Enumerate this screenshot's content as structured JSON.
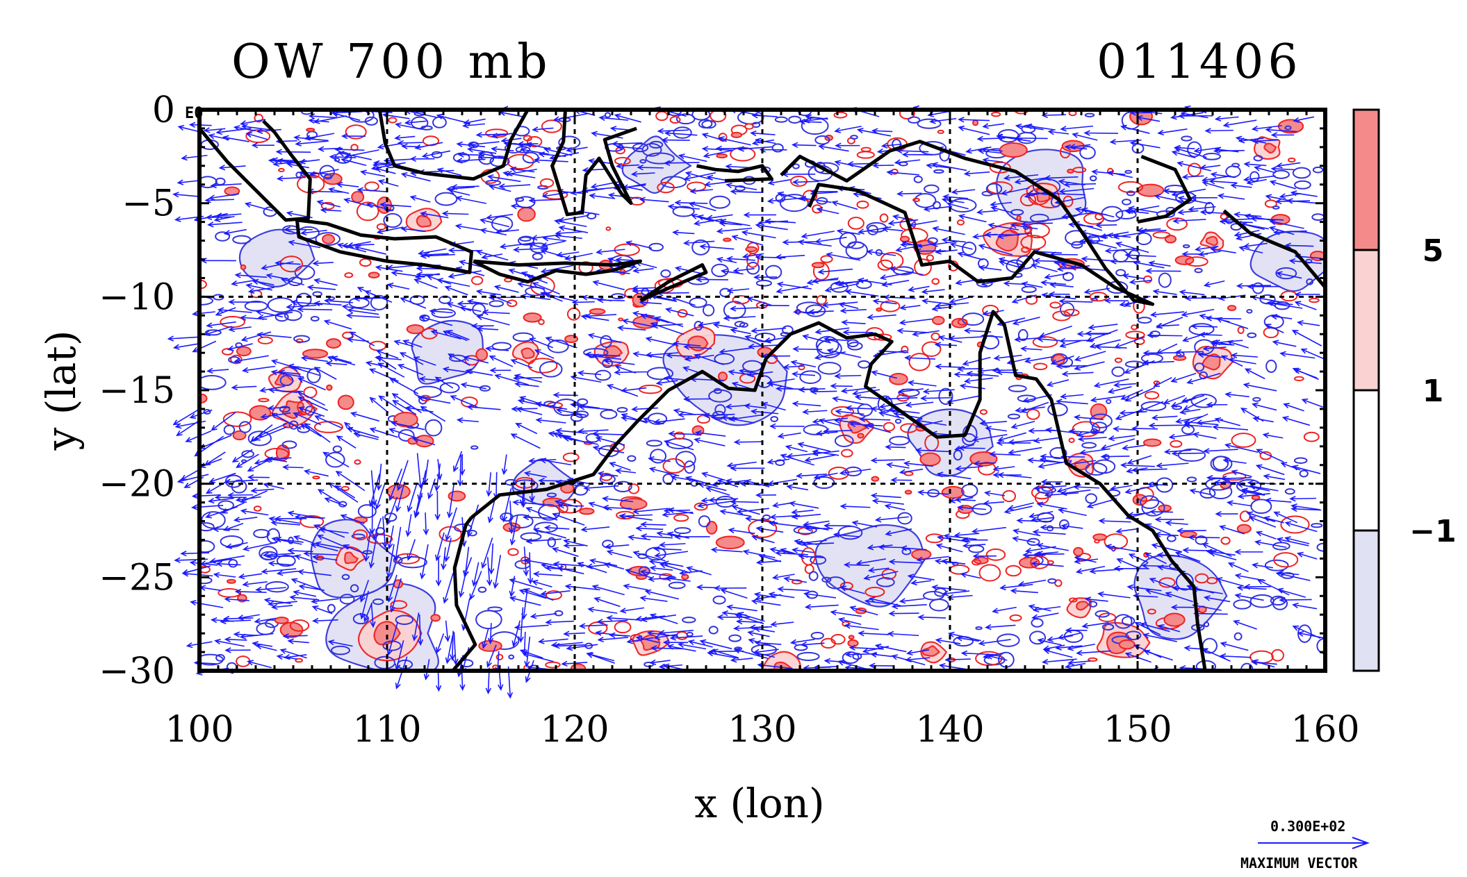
{
  "header": {
    "title": "OW 700 mb",
    "code": "011406"
  },
  "map": {
    "x_ticks": [
      "100",
      "110",
      "120",
      "130",
      "140",
      "150",
      "160"
    ],
    "y_ticks": [
      "0",
      "−5",
      "−10",
      "−15",
      "−20",
      "−25",
      "−30"
    ],
    "x_label": "x (lon)",
    "y_label": "y (lat)",
    "corner_label": "E0",
    "extent": {
      "lon": [
        100,
        160
      ],
      "lat": [
        -30,
        0
      ]
    }
  },
  "colorbar": {
    "labels": [
      "5",
      "1",
      "−1"
    ],
    "levels": [
      {
        "color": "#f58a8a"
      },
      {
        "color": "#fbd2d2"
      },
      {
        "color": "#ffffff"
      },
      {
        "color": "#e1e1f4"
      }
    ]
  },
  "vector_key": {
    "value": "0.300E+02",
    "label": "MAXIMUM VECTOR"
  },
  "colors": {
    "vectors": "#1a1aff",
    "positive": "#ee2222",
    "negative": "#3333dd",
    "coast": "#000000"
  }
}
